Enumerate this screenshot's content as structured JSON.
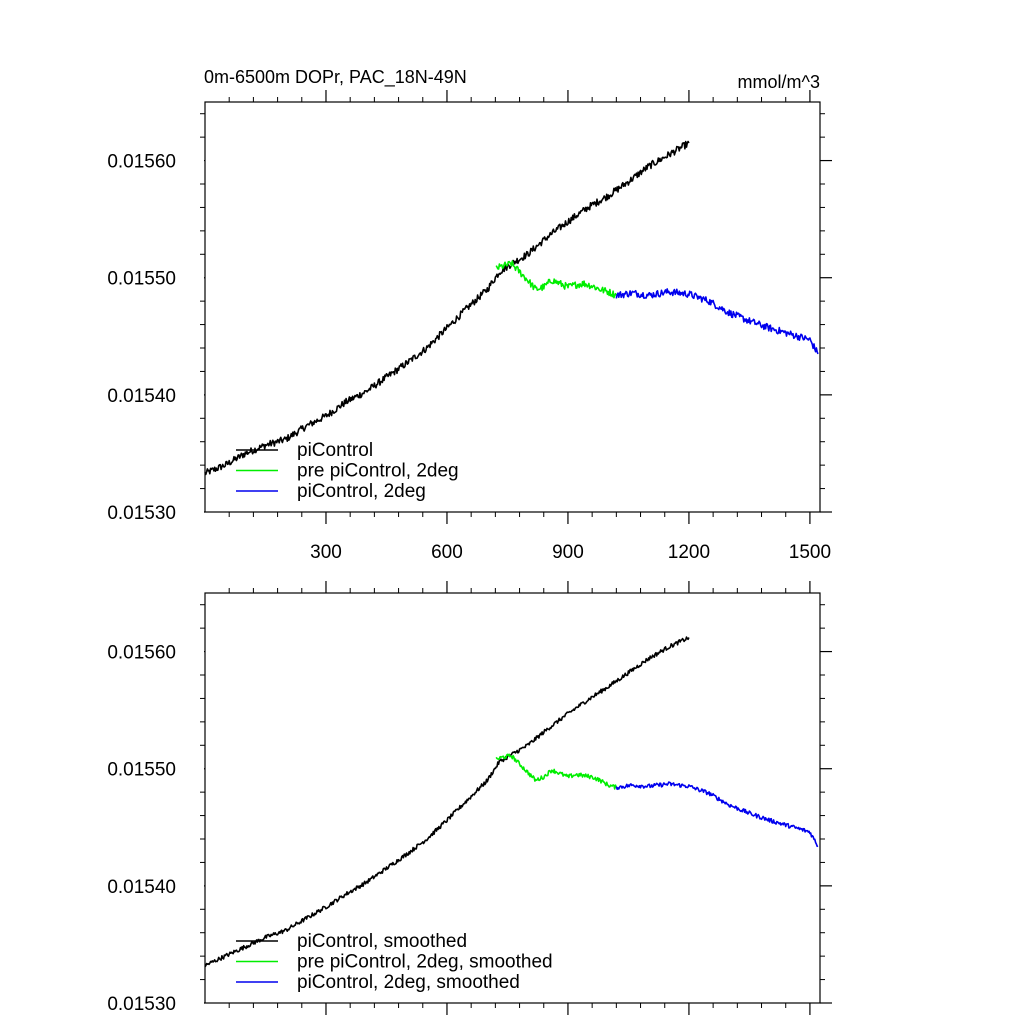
{
  "chart_data": [
    {
      "type": "line",
      "title": "0m-6500m DOPr, PAC_18N-49N",
      "units": "mmol/m^3",
      "xlim": [
        0,
        1525
      ],
      "ylim": [
        0.0153,
        0.01565
      ],
      "xticks": [
        300,
        600,
        900,
        1200,
        1500
      ],
      "xtick_labels": [
        "300",
        "600",
        "900",
        "1200",
        "1500"
      ],
      "yticks": [
        0.0153,
        0.0154,
        0.0155,
        0.0156
      ],
      "ytick_labels": [
        "0.01530",
        "0.01540",
        "0.01550",
        "0.01560"
      ],
      "legend_position": "bottom-left",
      "series": [
        {
          "name": "piControl",
          "color": "#000000",
          "x": [
            0,
            50,
            100,
            150,
            200,
            250,
            300,
            350,
            400,
            450,
            500,
            550,
            600,
            650,
            700,
            730,
            760,
            800,
            850,
            900,
            950,
            1000,
            1050,
            1100,
            1150,
            1200
          ],
          "values": [
            0.015333,
            0.01534,
            0.01535,
            0.015357,
            0.015362,
            0.015373,
            0.015382,
            0.015394,
            0.015403,
            0.015415,
            0.015427,
            0.01544,
            0.015457,
            0.015474,
            0.01549,
            0.015505,
            0.015512,
            0.01552,
            0.015535,
            0.015548,
            0.01556,
            0.01557,
            0.015582,
            0.015595,
            0.015605,
            0.015615
          ]
        },
        {
          "name": "pre piControl, 2deg",
          "color": "#00ee00",
          "x": [
            722,
            740,
            760,
            780,
            800,
            820,
            840,
            860,
            880,
            900,
            920,
            940,
            960,
            980,
            1000,
            1020
          ],
          "values": [
            0.015508,
            0.01551,
            0.015512,
            0.015505,
            0.015498,
            0.01549,
            0.015492,
            0.015498,
            0.015495,
            0.015492,
            0.015494,
            0.015495,
            0.015493,
            0.01549,
            0.015488,
            0.015485
          ]
        },
        {
          "name": "piControl, 2deg",
          "color": "#0000ee",
          "x": [
            1020,
            1060,
            1100,
            1150,
            1200,
            1250,
            1300,
            1350,
            1400,
            1450,
            1500,
            1520
          ],
          "values": [
            0.015485,
            0.015487,
            0.015485,
            0.015488,
            0.015486,
            0.01548,
            0.01547,
            0.015463,
            0.015457,
            0.015452,
            0.015447,
            0.015435
          ]
        }
      ]
    },
    {
      "type": "line",
      "title": "",
      "units": "",
      "xlim": [
        0,
        1525
      ],
      "ylim": [
        0.0153,
        0.01565
      ],
      "xticks": [
        300,
        600,
        900,
        1200,
        1500
      ],
      "xtick_labels": [],
      "yticks": [
        0.0153,
        0.0154,
        0.0155,
        0.0156
      ],
      "ytick_labels": [
        "0.01530",
        "0.01540",
        "0.01550",
        "0.01560"
      ],
      "legend_position": "bottom-left",
      "series": [
        {
          "name": "piControl, smoothed",
          "color": "#000000",
          "x": [
            0,
            50,
            100,
            150,
            200,
            250,
            300,
            350,
            400,
            450,
            500,
            550,
            600,
            650,
            700,
            730,
            760,
            800,
            850,
            900,
            950,
            1000,
            1050,
            1100,
            1150,
            1200
          ],
          "values": [
            0.015332,
            0.01534,
            0.015348,
            0.015356,
            0.015362,
            0.015372,
            0.015382,
            0.015393,
            0.015403,
            0.015415,
            0.015427,
            0.01544,
            0.015456,
            0.015473,
            0.01549,
            0.015506,
            0.015512,
            0.01552,
            0.015534,
            0.015547,
            0.015559,
            0.01557,
            0.015582,
            0.015594,
            0.015604,
            0.015612
          ]
        },
        {
          "name": "pre piControl, 2deg, smoothed",
          "color": "#00ee00",
          "x": [
            722,
            740,
            760,
            780,
            800,
            820,
            840,
            860,
            880,
            900,
            920,
            940,
            960,
            980,
            1000,
            1020
          ],
          "values": [
            0.015508,
            0.01551,
            0.015511,
            0.015504,
            0.015497,
            0.01549,
            0.015493,
            0.015499,
            0.015496,
            0.015493,
            0.015495,
            0.015494,
            0.015493,
            0.01549,
            0.015486,
            0.015484
          ]
        },
        {
          "name": "piControl, 2deg, smoothed",
          "color": "#0000ee",
          "x": [
            1020,
            1060,
            1100,
            1150,
            1200,
            1250,
            1300,
            1350,
            1400,
            1450,
            1500,
            1520
          ],
          "values": [
            0.015484,
            0.015486,
            0.015485,
            0.015487,
            0.015485,
            0.015479,
            0.015469,
            0.015462,
            0.015456,
            0.015451,
            0.015446,
            0.015434
          ]
        }
      ]
    }
  ]
}
